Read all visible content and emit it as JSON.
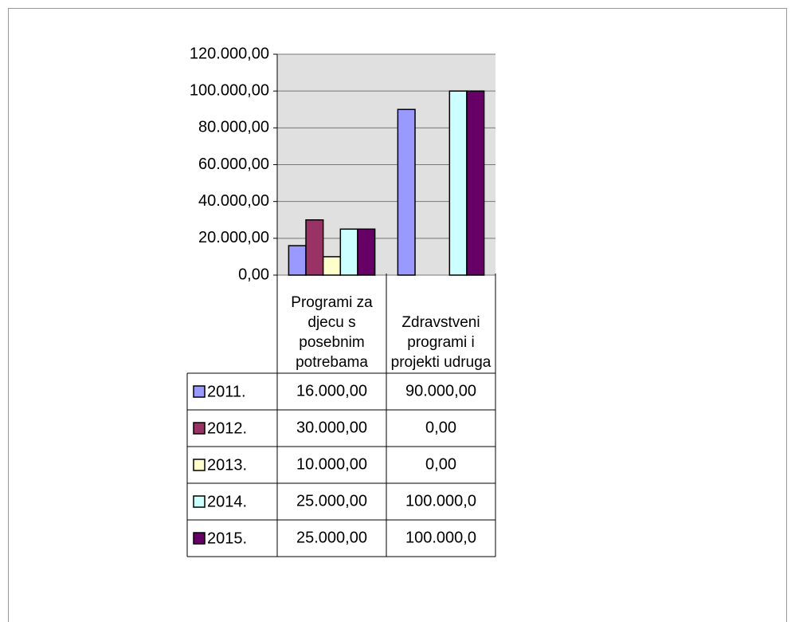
{
  "chart_data": {
    "type": "bar",
    "categories": [
      "Programi za djecu s posebnim potrebama",
      "Zdravstveni programi i projekti udruga"
    ],
    "series": [
      {
        "name": "2011.",
        "color": "#9999ff",
        "values": [
          16000,
          90000
        ],
        "value_labels": [
          "16.000,00",
          "90.000,00"
        ]
      },
      {
        "name": "2012.",
        "color": "#993366",
        "values": [
          30000,
          0
        ],
        "value_labels": [
          "30.000,00",
          "0,00"
        ]
      },
      {
        "name": "2013.",
        "color": "#ffffcc",
        "values": [
          10000,
          0
        ],
        "value_labels": [
          "10.000,00",
          "0,00"
        ]
      },
      {
        "name": "2014.",
        "color": "#ccffff",
        "values": [
          25000,
          100000
        ],
        "value_labels": [
          "25.000,00",
          "100.000,0"
        ]
      },
      {
        "name": "2015.",
        "color": "#660066",
        "values": [
          25000,
          100000
        ],
        "value_labels": [
          "25.000,00",
          "100.000,0"
        ]
      }
    ],
    "ylim": [
      0,
      120000
    ],
    "yticks": [
      {
        "value": 0,
        "label": "0,00"
      },
      {
        "value": 20000,
        "label": "20.000,00"
      },
      {
        "value": 40000,
        "label": "40.000,00"
      },
      {
        "value": 60000,
        "label": "60.000,00"
      },
      {
        "value": 80000,
        "label": "80.000,00"
      },
      {
        "value": 100000,
        "label": "100.000,00"
      },
      {
        "value": 120000,
        "label": "120.000,00"
      }
    ],
    "grid": true,
    "plot_background": "#e0e0e0"
  }
}
